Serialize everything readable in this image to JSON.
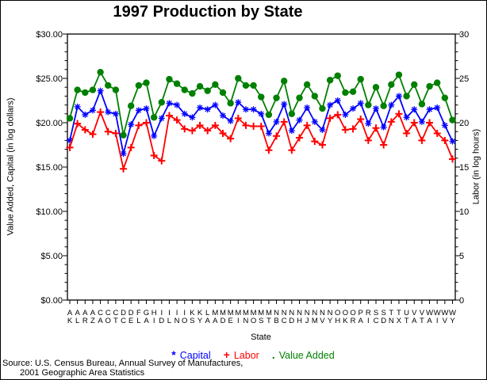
{
  "window": {
    "background": "#FFFFFF",
    "border_color": "#000000"
  },
  "chart_data": {
    "type": "line",
    "title": "1997 Production by State",
    "xlabel": "State",
    "grid": false,
    "legend_position": "bottom",
    "categories": [
      "AK",
      "AL",
      "AR",
      "AZ",
      "CA",
      "CO",
      "CT",
      "DC",
      "DE",
      "FL",
      "GA",
      "HI",
      "ID",
      "IL",
      "IN",
      "IO",
      "KS",
      "KY",
      "LA",
      "MA",
      "MD",
      "ME",
      "MI",
      "MN",
      "MO",
      "MS",
      "MT",
      "NB",
      "NC",
      "ND",
      "NH",
      "NJ",
      "NM",
      "NV",
      "NY",
      "OH",
      "OK",
      "OR",
      "PA",
      "RI",
      "SC",
      "SD",
      "TN",
      "TX",
      "UT",
      "VA",
      "VT",
      "WA",
      "WI",
      "WV",
      "WY"
    ],
    "y_left": {
      "title": "Value Added, Capital (in log dollars)",
      "range": [
        0,
        30
      ],
      "minor_tick_step": 1,
      "ticks": [
        {
          "value": 30,
          "label": "$30.00"
        },
        {
          "value": 25,
          "label": "$25.00"
        },
        {
          "value": 20,
          "label": "$20.00"
        },
        {
          "value": 15,
          "label": "$15.00"
        },
        {
          "value": 10,
          "label": "$10.00"
        },
        {
          "value": 5,
          "label": "$5.00"
        },
        {
          "value": 0,
          "label": "$0.00"
        }
      ]
    },
    "y_right": {
      "title": "Labor (in log hours)",
      "range": [
        0,
        30
      ],
      "minor_tick_step": 1,
      "ticks": [
        {
          "value": 30,
          "label": "30"
        },
        {
          "value": 25,
          "label": "25"
        },
        {
          "value": 20,
          "label": "20"
        },
        {
          "value": 15,
          "label": "15"
        },
        {
          "value": 10,
          "label": "10"
        },
        {
          "value": 5,
          "label": "5"
        },
        {
          "value": 0,
          "label": "0"
        }
      ]
    },
    "series": [
      {
        "name": "Capital",
        "symbol": "*",
        "marker": "star",
        "color": "#0000FF",
        "axis": "left",
        "values": [
          18.0,
          21.8,
          20.9,
          21.4,
          23.6,
          21.2,
          21.0,
          16.5,
          19.8,
          21.4,
          21.6,
          18.5,
          20.5,
          22.2,
          22.0,
          21.0,
          20.6,
          21.7,
          21.5,
          22.0,
          20.8,
          20.2,
          22.3,
          21.5,
          21.5,
          21.0,
          18.8,
          20.1,
          22.1,
          19.1,
          20.3,
          21.7,
          20.1,
          19.2,
          22.0,
          22.5,
          20.9,
          21.6,
          22.2,
          19.9,
          21.6,
          19.5,
          22.0,
          23.0,
          20.6,
          21.5,
          20.1,
          21.5,
          21.7,
          19.7,
          17.9
        ]
      },
      {
        "name": "Labor",
        "symbol": "+",
        "marker": "plus",
        "color": "#FF0000",
        "axis": "right",
        "values": [
          17.2,
          19.9,
          19.2,
          18.7,
          21.2,
          19.0,
          18.8,
          14.8,
          17.2,
          19.7,
          20.0,
          16.3,
          15.7,
          20.8,
          20.3,
          19.3,
          19.1,
          19.7,
          19.1,
          19.7,
          18.8,
          18.2,
          20.5,
          19.7,
          19.6,
          19.6,
          16.9,
          18.5,
          20.1,
          16.9,
          18.3,
          19.7,
          17.9,
          17.5,
          20.5,
          20.9,
          19.2,
          19.3,
          20.4,
          18.0,
          19.4,
          17.5,
          20.1,
          21.0,
          18.8,
          20.0,
          18.0,
          20.0,
          18.8,
          18.0,
          15.9
        ]
      },
      {
        "name": "Value Added",
        "symbol": ".",
        "marker": "dot",
        "color": "#008000",
        "axis": "left",
        "values": [
          20.5,
          23.7,
          23.4,
          23.7,
          25.7,
          24.2,
          23.7,
          18.6,
          21.9,
          24.2,
          24.5,
          20.6,
          22.3,
          24.9,
          24.4,
          23.7,
          23.3,
          24.1,
          23.6,
          24.3,
          23.4,
          22.2,
          25.0,
          24.2,
          24.2,
          22.9,
          20.9,
          22.8,
          24.7,
          21.0,
          22.8,
          24.3,
          23.0,
          21.6,
          24.8,
          25.3,
          23.4,
          23.5,
          24.9,
          22.0,
          24.0,
          21.9,
          24.3,
          25.4,
          23.0,
          24.3,
          22.1,
          24.1,
          24.5,
          22.8,
          20.3
        ]
      }
    ]
  },
  "source_note": {
    "line1": "Source: U.S. Census Bureau, Annual Survey of Manufactures,",
    "line2": "2001 Geographic Area Statistics"
  }
}
